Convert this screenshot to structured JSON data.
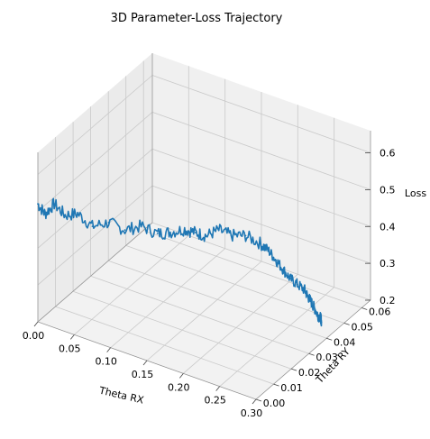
{
  "chart_data": {
    "type": "line",
    "projection": "3d",
    "title": "3D Parameter-Loss Trajectory",
    "xlabel": "Theta RX",
    "ylabel": "Theta RY",
    "zlabel": "Loss",
    "xlim": [
      0.0,
      0.3
    ],
    "ylim": [
      0.0,
      0.065
    ],
    "zlim": [
      0.2,
      0.66
    ],
    "xticks": [
      "0.00",
      "0.05",
      "0.10",
      "0.15",
      "0.20",
      "0.25",
      "0.30"
    ],
    "yticks": [
      "0.00",
      "0.01",
      "0.02",
      "0.03",
      "0.04",
      "0.05",
      "0.06"
    ],
    "zticks": [
      "0.2",
      "0.3",
      "0.4",
      "0.5",
      "0.6"
    ],
    "grid": true,
    "color": "#1f77b4",
    "series": [
      {
        "points": [
          {
            "x": 0.0,
            "y": 0.0,
            "z": 0.52
          },
          {
            "x": 0.01,
            "y": 0.0,
            "z": 0.5
          },
          {
            "x": 0.02,
            "y": 0.001,
            "z": 0.53
          },
          {
            "x": 0.035,
            "y": 0.001,
            "z": 0.51
          },
          {
            "x": 0.05,
            "y": 0.002,
            "z": 0.52
          },
          {
            "x": 0.07,
            "y": 0.002,
            "z": 0.5
          },
          {
            "x": 0.09,
            "y": 0.003,
            "z": 0.52
          },
          {
            "x": 0.11,
            "y": 0.004,
            "z": 0.51
          },
          {
            "x": 0.13,
            "y": 0.005,
            "z": 0.53
          },
          {
            "x": 0.15,
            "y": 0.006,
            "z": 0.52
          },
          {
            "x": 0.165,
            "y": 0.007,
            "z": 0.53
          },
          {
            "x": 0.18,
            "y": 0.009,
            "z": 0.54
          },
          {
            "x": 0.19,
            "y": 0.011,
            "z": 0.53
          },
          {
            "x": 0.2,
            "y": 0.013,
            "z": 0.52
          },
          {
            "x": 0.21,
            "y": 0.016,
            "z": 0.53
          },
          {
            "x": 0.22,
            "y": 0.019,
            "z": 0.51
          },
          {
            "x": 0.23,
            "y": 0.023,
            "z": 0.5
          },
          {
            "x": 0.24,
            "y": 0.027,
            "z": 0.47
          },
          {
            "x": 0.245,
            "y": 0.03,
            "z": 0.44
          },
          {
            "x": 0.25,
            "y": 0.032,
            "z": 0.41
          },
          {
            "x": 0.255,
            "y": 0.034,
            "z": 0.38
          },
          {
            "x": 0.26,
            "y": 0.036,
            "z": 0.35
          },
          {
            "x": 0.265,
            "y": 0.038,
            "z": 0.33
          },
          {
            "x": 0.27,
            "y": 0.04,
            "z": 0.31
          },
          {
            "x": 0.272,
            "y": 0.041,
            "z": 0.29
          },
          {
            "x": 0.275,
            "y": 0.042,
            "z": 0.27
          },
          {
            "x": 0.277,
            "y": 0.043,
            "z": 0.25
          },
          {
            "x": 0.279,
            "y": 0.044,
            "z": 0.23
          },
          {
            "x": 0.28,
            "y": 0.045,
            "z": 0.22
          },
          {
            "x": 0.281,
            "y": 0.045,
            "z": 0.21
          }
        ]
      }
    ]
  }
}
